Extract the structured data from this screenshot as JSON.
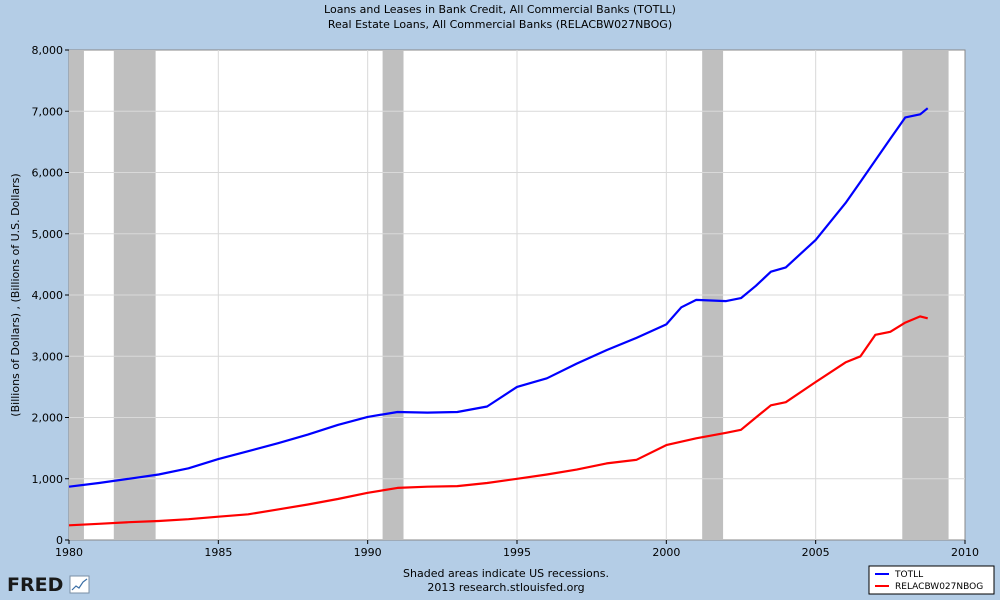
{
  "chart_data": {
    "type": "line",
    "title": "Loans and Leases in Bank Credit, All Commercial Banks (TOTLL)",
    "subtitle": "Real Estate Loans, All Commercial Banks (RELACBW027NBOG)",
    "ylabel": "(Billions of Dollars) , (Billions of U.S. Dollars)",
    "xlabel": "",
    "xlim": [
      1980,
      2010
    ],
    "ylim": [
      0,
      8000
    ],
    "x_ticks": [
      1980,
      1985,
      1990,
      1995,
      2000,
      2005,
      2010
    ],
    "x_tick_labels": [
      "1980",
      "1985",
      "1990",
      "1995",
      "2000",
      "2005",
      "2010"
    ],
    "y_ticks": [
      0,
      1000,
      2000,
      3000,
      4000,
      5000,
      6000,
      7000,
      8000
    ],
    "y_tick_labels": [
      "0",
      "1,000",
      "2,000",
      "3,000",
      "4,000",
      "5,000",
      "6,000",
      "7,000",
      "8,000"
    ],
    "grid": true,
    "legend_position": "bottom-right",
    "recessions": [
      [
        1980.0,
        1980.5
      ],
      [
        1981.5,
        1982.9
      ],
      [
        1990.5,
        1991.2
      ],
      [
        2001.2,
        2001.9
      ],
      [
        2007.9,
        2009.45
      ]
    ],
    "series": [
      {
        "name": "TOTLL",
        "color": "#0000ff",
        "x": [
          1980,
          1981,
          1982,
          1983,
          1984,
          1985,
          1986,
          1987,
          1988,
          1989,
          1990,
          1991,
          1992,
          1993,
          1994,
          1995,
          1996,
          1997,
          1998,
          1999,
          2000,
          2000.5,
          2001,
          2002,
          2002.5,
          2003,
          2003.5,
          2004,
          2005,
          2006,
          2006.5,
          2007,
          2007.5,
          2008,
          2008.5,
          2008.75
        ],
        "y": [
          870,
          930,
          1000,
          1070,
          1170,
          1320,
          1450,
          1580,
          1720,
          1880,
          2010,
          2090,
          2080,
          2090,
          2180,
          2500,
          2640,
          2880,
          3100,
          3300,
          3520,
          3800,
          3920,
          3900,
          3950,
          4150,
          4380,
          4450,
          4900,
          5500,
          5850,
          6200,
          6550,
          6900,
          6950,
          7050
        ]
      },
      {
        "name": "RELACBW027NBOG",
        "color": "#ff0000",
        "x": [
          1980,
          1981,
          1982,
          1983,
          1984,
          1985,
          1986,
          1987,
          1988,
          1989,
          1990,
          1991,
          1992,
          1993,
          1994,
          1995,
          1996,
          1997,
          1998,
          1999,
          2000,
          2001,
          2002,
          2002.5,
          2003,
          2003.5,
          2004,
          2005,
          2006,
          2006.5,
          2007,
          2007.5,
          2008,
          2008.5,
          2008.75
        ],
        "y": [
          240,
          265,
          290,
          310,
          340,
          380,
          420,
          500,
          580,
          670,
          770,
          850,
          870,
          880,
          930,
          1000,
          1070,
          1150,
          1250,
          1310,
          1550,
          1660,
          1750,
          1800,
          2000,
          2200,
          2250,
          2580,
          2900,
          3000,
          3350,
          3400,
          3550,
          3650,
          3620
        ]
      }
    ]
  },
  "footer": {
    "line1": "Shaded areas indicate US recessions.",
    "line2": "2013 research.stlouisfed.org"
  },
  "logo": {
    "text": "FRED"
  }
}
